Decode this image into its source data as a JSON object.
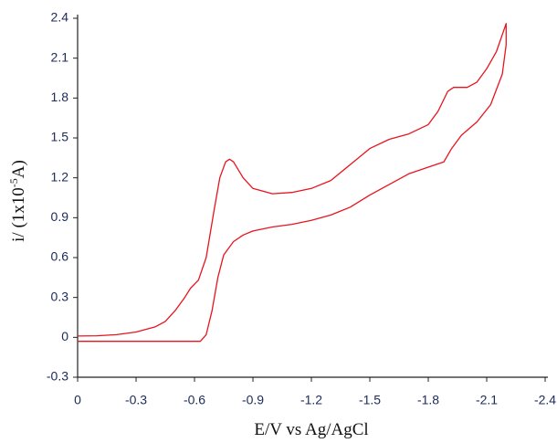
{
  "chart_data": {
    "type": "line",
    "x_label": "E/V vs Ag/AgCl",
    "y_label": {
      "text": "i/ (1x10",
      "sup": "-5",
      "tail": "A)"
    },
    "xlim": [
      0,
      -2.4
    ],
    "xticks": [
      0,
      -0.3,
      -0.6,
      -0.9,
      -1.2,
      -1.5,
      -1.8,
      -2.1,
      -2.4
    ],
    "ylim": [
      -0.3,
      2.4
    ],
    "yticks": [
      -0.3,
      0,
      0.3,
      0.6,
      0.9,
      1.2,
      1.5,
      1.8,
      2.1,
      2.4
    ],
    "series": [
      {
        "color": "#e8141e",
        "x": [
          0,
          -0.1,
          -0.2,
          -0.3,
          -0.4,
          -0.45,
          -0.5,
          -0.55,
          -0.58,
          -0.62,
          -0.66,
          -0.7,
          -0.73,
          -0.76,
          -0.78,
          -0.8,
          -0.85,
          -0.9,
          -1.0,
          -1.1,
          -1.2,
          -1.3,
          -1.4,
          -1.5,
          -1.6,
          -1.7,
          -1.8,
          -1.85,
          -1.9,
          -1.93,
          -2.0,
          -2.05,
          -2.1,
          -2.15,
          -2.2,
          -2.2,
          -2.18,
          -2.12,
          -2.05,
          -1.97,
          -1.92,
          -1.88,
          -1.8,
          -1.7,
          -1.6,
          -1.5,
          -1.4,
          -1.3,
          -1.2,
          -1.1,
          -1.0,
          -0.9,
          -0.85,
          -0.8,
          -0.75,
          -0.72,
          -0.69,
          -0.66,
          -0.63,
          -0.6,
          -0.4,
          -0.2,
          0
        ],
        "values": [
          0.01,
          0.012,
          0.02,
          0.04,
          0.08,
          0.12,
          0.2,
          0.3,
          0.37,
          0.43,
          0.6,
          0.95,
          1.2,
          1.32,
          1.34,
          1.32,
          1.2,
          1.12,
          1.08,
          1.09,
          1.12,
          1.18,
          1.3,
          1.42,
          1.49,
          1.53,
          1.6,
          1.7,
          1.85,
          1.88,
          1.88,
          1.92,
          2.02,
          2.15,
          2.36,
          2.2,
          1.98,
          1.75,
          1.62,
          1.52,
          1.42,
          1.32,
          1.28,
          1.23,
          1.15,
          1.07,
          0.98,
          0.92,
          0.88,
          0.85,
          0.83,
          0.8,
          0.77,
          0.72,
          0.62,
          0.45,
          0.2,
          0.02,
          -0.03,
          -0.03,
          -0.03,
          -0.03,
          -0.03
        ]
      }
    ]
  }
}
